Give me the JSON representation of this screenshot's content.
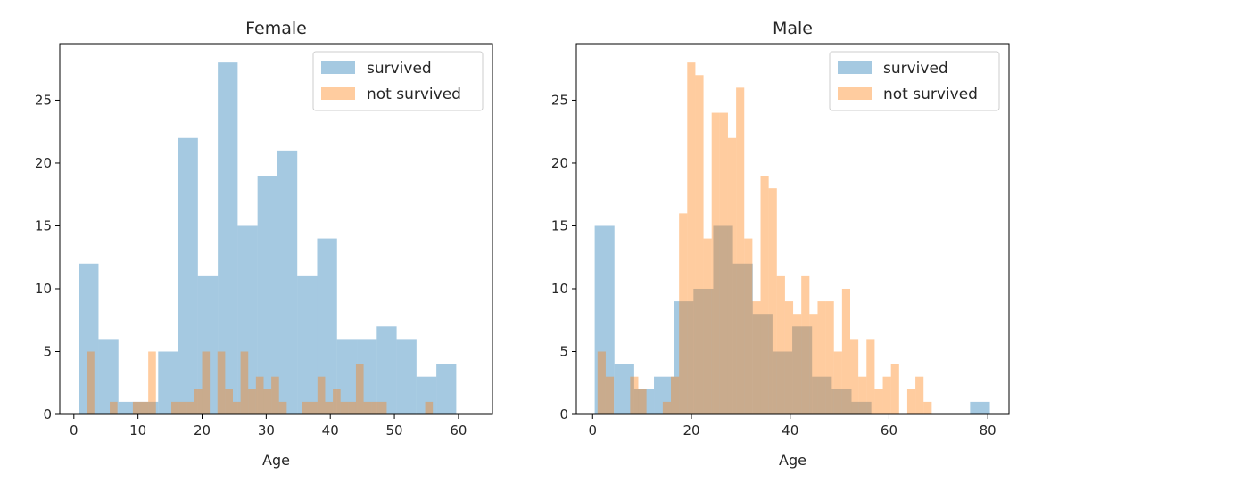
{
  "figure": {
    "background": "#ffffff",
    "colors": {
      "survived": "#1f77b4",
      "not_survived": "#ff7f0e",
      "alpha": 0.4
    }
  },
  "chart_data": [
    {
      "type": "bar",
      "subtype": "histogram",
      "title": "Female",
      "xlabel": "Age",
      "ylabel": "",
      "xlim": [
        -2.2,
        65.3
      ],
      "ylim": [
        0,
        29.5
      ],
      "xticks": [
        0,
        10,
        20,
        30,
        40,
        50,
        60
      ],
      "yticks": [
        0,
        5,
        10,
        15,
        20,
        25
      ],
      "legend": {
        "position": "top-right",
        "entries": [
          "survived",
          "not survived"
        ]
      },
      "grid": false,
      "series": [
        {
          "name": "survived",
          "color": "#1f77b4",
          "bin_start": 0.75,
          "bin_width": 3.1,
          "values": [
            12,
            6,
            1,
            1,
            5,
            22,
            11,
            28,
            15,
            19,
            21,
            11,
            14,
            6,
            6,
            7,
            6,
            3,
            4
          ]
        },
        {
          "name": "not survived",
          "color": "#ff7f0e",
          "bin_start": 2.0,
          "bin_width": 1.2,
          "values": [
            5,
            0,
            0,
            1,
            0,
            0,
            1,
            1,
            5,
            0,
            0,
            1,
            1,
            1,
            2,
            5,
            0,
            5,
            2,
            1,
            5,
            2,
            3,
            2,
            3,
            1,
            0,
            0,
            1,
            1,
            3,
            1,
            2,
            1,
            1,
            4,
            1,
            1,
            1,
            0,
            0,
            0,
            0,
            0,
            1
          ]
        }
      ]
    },
    {
      "type": "bar",
      "subtype": "histogram",
      "title": "Male",
      "xlabel": "Age",
      "ylabel": "",
      "xlim": [
        -3.3,
        84.3
      ],
      "ylim": [
        0,
        29.5
      ],
      "xticks": [
        0,
        20,
        40,
        60,
        80
      ],
      "yticks": [
        0,
        5,
        10,
        15,
        20,
        25
      ],
      "legend": {
        "position": "top-right",
        "entries": [
          "survived",
          "not survived"
        ]
      },
      "grid": false,
      "series": [
        {
          "name": "survived",
          "color": "#1f77b4",
          "bin_start": 0.42,
          "bin_width": 4.0,
          "values": [
            15,
            4,
            2,
            3,
            9,
            10,
            15,
            12,
            8,
            5,
            7,
            3,
            2,
            1,
            0,
            0,
            0,
            0,
            0,
            1
          ]
        },
        {
          "name": "not survived",
          "color": "#ff7f0e",
          "bin_start": 1.0,
          "bin_width": 1.65,
          "values": [
            5,
            3,
            0,
            0,
            3,
            2,
            0,
            0,
            1,
            3,
            16,
            28,
            27,
            14,
            24,
            24,
            22,
            26,
            14,
            9,
            19,
            18,
            11,
            9,
            8,
            11,
            8,
            9,
            9,
            5,
            10,
            6,
            3,
            6,
            2,
            3,
            4,
            0,
            2,
            3,
            1
          ]
        }
      ]
    }
  ]
}
